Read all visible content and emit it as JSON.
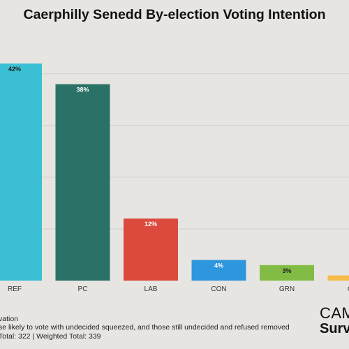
{
  "chart_data": {
    "type": "bar",
    "title": "Caerphilly Senedd By-election Voting Intention",
    "categories": [
      "REF",
      "PC",
      "LAB",
      "CON",
      "GRN",
      "OTH"
    ],
    "values": [
      42,
      38,
      12,
      4,
      3,
      1
    ],
    "data_labels": [
      "42%",
      "38%",
      "12%",
      "4%",
      "3%",
      ""
    ],
    "colors": [
      "#3bbfd4",
      "#2a7267",
      "#dc4a3e",
      "#2e96dc",
      "#82bc44",
      "#f6bb48"
    ],
    "label_colors": [
      "#1a1a1a",
      "#ffffff",
      "#ffffff",
      "#ffffff",
      "#1a1a1a",
      "#1a1a1a"
    ],
    "ylim": [
      0,
      42
    ],
    "grid": true,
    "legend": "none"
  },
  "footnotes": {
    "line1": "vation",
    "line2": "se likely to vote with undecided squeezed, and those still undecided and refused removed",
    "line3": "Total: 322 | Weighted Total: 339"
  },
  "logo": {
    "top": "CAM",
    "bottom": "Surv"
  }
}
